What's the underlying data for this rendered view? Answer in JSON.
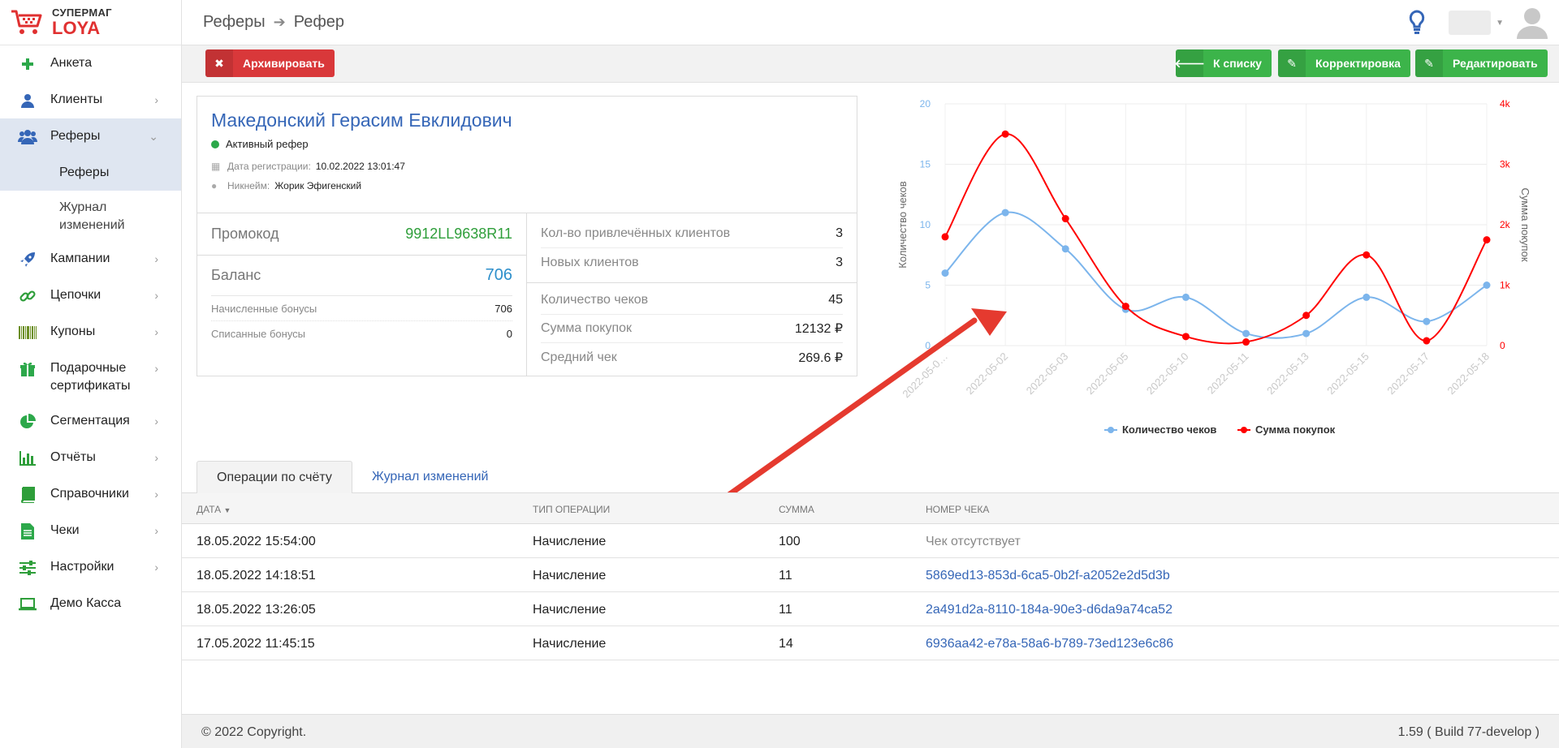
{
  "logo": {
    "line1": "СУПЕРМАГ",
    "line2": "LOYA"
  },
  "sidebar": {
    "items": [
      {
        "label": "Анкета",
        "icon": "plus-icon"
      },
      {
        "label": "Клиенты",
        "icon": "user-icon"
      },
      {
        "label": "Реферы",
        "icon": "users-icon"
      },
      {
        "label": "Кампании",
        "icon": "rocket-icon"
      },
      {
        "label": "Цепочки",
        "icon": "link-icon"
      },
      {
        "label": "Купоны",
        "icon": "barcode-icon"
      },
      {
        "label": "Подарочные сертификаты",
        "icon": "gift-icon"
      },
      {
        "label": "Сегментация",
        "icon": "pie-icon"
      },
      {
        "label": "Отчёты",
        "icon": "bar-chart-icon"
      },
      {
        "label": "Справочники",
        "icon": "book-icon"
      },
      {
        "label": "Чеки",
        "icon": "file-icon"
      },
      {
        "label": "Настройки",
        "icon": "sliders-icon"
      },
      {
        "label": "Демо Касса",
        "icon": "laptop-icon"
      }
    ],
    "subitems": [
      {
        "label": "Реферы"
      },
      {
        "label": "Журнал изменений"
      }
    ]
  },
  "header": {
    "breadcrumb": [
      "Реферы",
      "Рефер"
    ]
  },
  "toolbar": {
    "archive": "Архивировать",
    "to_list": "К списку",
    "correction": "Корректировка",
    "edit": "Редактировать"
  },
  "referrer": {
    "name": "Македонский Герасим Евклидович",
    "status": "Активный рефер",
    "reg_label": "Дата регистрации:",
    "reg_value": "10.02.2022 13:01:47",
    "nick_label": "Никнейм:",
    "nick_value": "Жорик Эфигенский",
    "promo_label": "Промокод",
    "promo_value": "9912LL9638R11",
    "balance_label": "Баланс",
    "balance_value": "706",
    "accrued_label": "Начисленные бонусы",
    "accrued_value": "706",
    "spent_label": "Списанные бонусы",
    "spent_value": "0",
    "attracted_label": "Кол-во привлечённых клиентов",
    "attracted_value": "3",
    "new_label": "Новых клиентов",
    "new_value": "3",
    "checks_label": "Количество чеков",
    "checks_value": "45",
    "sum_label": "Сумма покупок",
    "sum_value": "12132 ₽",
    "avg_label": "Средний чек",
    "avg_value": "269.6 ₽"
  },
  "chart_data": {
    "type": "line",
    "x": [
      "2022-05-01",
      "2022-05-02",
      "2022-05-03",
      "2022-05-05",
      "2022-05-10",
      "2022-05-11",
      "2022-05-13",
      "2022-05-15",
      "2022-05-17",
      "2022-05-18"
    ],
    "x_labels": [
      "2022-05-0…",
      "2022-05-02",
      "2022-05-03",
      "2022-05-05",
      "2022-05-10",
      "2022-05-11",
      "2022-05-13",
      "2022-05-15",
      "2022-05-17",
      "2022-05-18"
    ],
    "series": [
      {
        "name": "Количество чеков",
        "axis": "left",
        "color": "#7cb5ec",
        "values": [
          6,
          11,
          8,
          3,
          4,
          1,
          1,
          4,
          2,
          5
        ]
      },
      {
        "name": "Сумма покупок",
        "axis": "right",
        "color": "#ff0000",
        "values": [
          1800,
          3500,
          2100,
          650,
          150,
          60,
          500,
          1500,
          80,
          1750
        ]
      }
    ],
    "ylabel_left": "Количество чеков",
    "ylabel_right": "Сумма покупок",
    "ylim_left": [
      0,
      20
    ],
    "ylim_right": [
      0,
      4000
    ],
    "yticks_left": [
      "0",
      "5",
      "10",
      "15",
      "20"
    ],
    "yticks_right": [
      "0",
      "1k",
      "2k",
      "3k",
      "4k"
    ],
    "grid": true,
    "legend": "bottom"
  },
  "tabs": {
    "operations": "Операции по счёту",
    "journal": "Журнал изменений"
  },
  "table": {
    "headers": [
      "ДАТА",
      "ТИП ОПЕРАЦИИ",
      "СУММА",
      "НОМЕР ЧЕКА"
    ],
    "rows": [
      {
        "date": "18.05.2022 15:54:00",
        "type": "Начисление",
        "sum": "100",
        "check": "Чек отсутствует"
      },
      {
        "date": "18.05.2022 14:18:51",
        "type": "Начисление",
        "sum": "11",
        "check": "5869ed13-853d-6ca5-0b2f-a2052e2d5d3b"
      },
      {
        "date": "18.05.2022 13:26:05",
        "type": "Начисление",
        "sum": "11",
        "check": "2a491d2a-8110-184a-90e3-d6da9a74ca52"
      },
      {
        "date": "17.05.2022 11:45:15",
        "type": "Начисление",
        "sum": "14",
        "check": "6936aa42-e78a-58a6-b789-73ed123e6c86"
      }
    ]
  },
  "footer": {
    "copyright": "© 2022 Copyright.",
    "version": "1.59 ( Build 77-develop )"
  }
}
